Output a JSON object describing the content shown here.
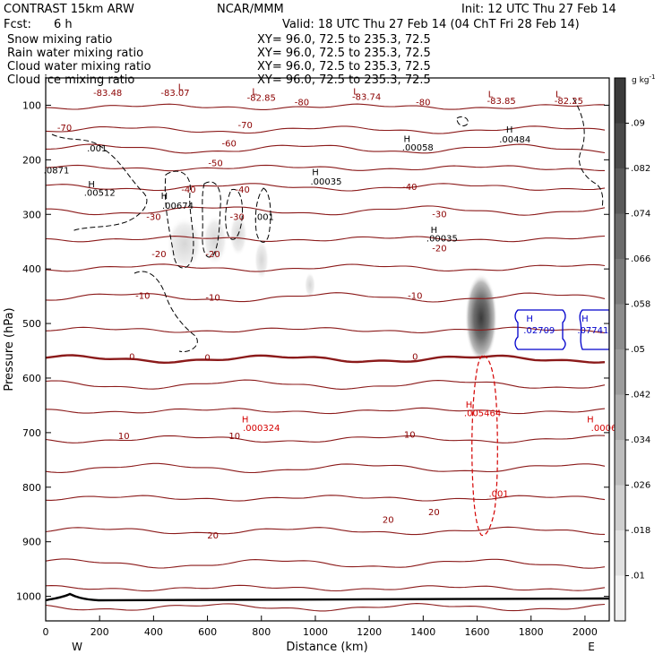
{
  "header": {
    "model": "CONTRAST 15km ARW",
    "org": "NCAR/MMM",
    "init": "Init: 12 UTC Thu 27 Feb 14",
    "fcst_label": "Fcst:",
    "fcst_value": "6 h",
    "valid": "Valid: 18 UTC Thu 27 Feb 14 (04 ChT Fri 28 Feb 14)",
    "legend": [
      {
        "label": "Snow mixing ratio",
        "xy": "XY=  96.0, 72.5 to 235.3, 72.5",
        "color": "#000000"
      },
      {
        "label": "Rain water mixing ratio",
        "xy": "XY=  96.0, 72.5 to 235.3, 72.5",
        "color": "#d40000"
      },
      {
        "label": "Cloud water mixing ratio",
        "xy": "XY=  96.0, 72.5 to 235.3, 72.5",
        "color": "#0000cc"
      },
      {
        "label": "Cloud ice mixing ratio",
        "xy": "XY=  96.0, 72.5 to 235.3, 72.5",
        "color": "#000000"
      }
    ]
  },
  "chart_data": {
    "type": "cross-section",
    "xlabel": "Distance (km)",
    "ylabel": "Pressure (hPa)",
    "xlim": [
      0,
      2090
    ],
    "ylim_hpa": [
      50,
      1045
    ],
    "x_ticks": [
      0,
      200,
      400,
      600,
      800,
      1000,
      1200,
      1400,
      1600,
      1800,
      2000
    ],
    "y_ticks": [
      100,
      200,
      300,
      400,
      500,
      600,
      700,
      800,
      900,
      1000
    ],
    "west_label": "W",
    "east_label": "E",
    "colorbar": {
      "units": "g kg",
      "units_exp": "-1",
      "levels": [
        ".09",
        ".082",
        ".074",
        ".066",
        ".058",
        ".05",
        ".042",
        ".034",
        ".026",
        ".018",
        ".01"
      ],
      "shades": [
        "#3b3b3b",
        "#4a4a4a",
        "#5a5a5a",
        "#6b6b6b",
        "#7b7b7b",
        "#8c8c8c",
        "#9c9c9c",
        "#adadad",
        "#bdbdbd",
        "#cfcfcf",
        "#e1e1e1",
        "#f1f1f1"
      ]
    },
    "temperature_lines": [
      {
        "label": "-80",
        "p": 103
      },
      {
        "label": "-70",
        "p": 145
      },
      {
        "label": "-60",
        "p": 180
      },
      {
        "label": "-50",
        "p": 215
      },
      {
        "label": "-40",
        "p": 250
      },
      {
        "label": "-30",
        "p": 293
      },
      {
        "label": "-20",
        "p": 345
      },
      {
        "label": "-10",
        "p": 398
      },
      {
        "label": "-10",
        "p": 452
      },
      {
        "label": "",
        "p": 512
      },
      {
        "label": "0",
        "p": 565
      },
      {
        "label": "",
        "p": 612
      },
      {
        "label": "",
        "p": 660
      },
      {
        "label": "10",
        "p": 712
      },
      {
        "label": "",
        "p": 765
      },
      {
        "label": "",
        "p": 820
      },
      {
        "label": "20",
        "p": 880
      },
      {
        "label": "",
        "p": 940
      },
      {
        "label": "",
        "p": 985
      },
      {
        "label": "",
        "p": 1020
      }
    ],
    "contour_labels": [
      {
        "text": "-83.48",
        "x": 230,
        "p": 83,
        "color": "#8b0000"
      },
      {
        "text": "L",
        "x": 500,
        "p": 72,
        "color": "#8b0000"
      },
      {
        "text": "-83.07",
        "x": 480,
        "p": 83,
        "color": "#8b0000"
      },
      {
        "text": "L",
        "x": 775,
        "p": 80,
        "color": "#8b0000"
      },
      {
        "text": "-82.85",
        "x": 800,
        "p": 92,
        "color": "#8b0000"
      },
      {
        "text": "-80",
        "x": 950,
        "p": 100,
        "color": "#8b0000"
      },
      {
        "text": "L",
        "x": 1150,
        "p": 80,
        "color": "#8b0000"
      },
      {
        "text": "-83.74",
        "x": 1190,
        "p": 90,
        "color": "#8b0000"
      },
      {
        "text": "-80",
        "x": 1400,
        "p": 100,
        "color": "#8b0000"
      },
      {
        "text": "L",
        "x": 1650,
        "p": 85,
        "color": "#8b0000"
      },
      {
        "text": "-83.85",
        "x": 1690,
        "p": 98,
        "color": "#8b0000"
      },
      {
        "text": "L",
        "x": 1900,
        "p": 85,
        "color": "#8b0000"
      },
      {
        "text": "-82.25",
        "x": 1940,
        "p": 98,
        "color": "#8b0000"
      },
      {
        "text": "-70",
        "x": 70,
        "p": 147,
        "color": "#8b0000"
      },
      {
        "text": "-70",
        "x": 740,
        "p": 142,
        "color": "#8b0000"
      },
      {
        "text": "H",
        "x": 1720,
        "p": 150,
        "color": "#000000"
      },
      {
        "text": ".00484",
        "x": 1740,
        "p": 168,
        "color": "#000000"
      },
      {
        "text": "H",
        "x": 1340,
        "p": 167,
        "color": "#000000"
      },
      {
        "text": ".00058",
        "x": 1380,
        "p": 183,
        "color": "#000000"
      },
      {
        "text": ".001",
        "x": 190,
        "p": 185,
        "color": "#000000"
      },
      {
        "text": "-60",
        "x": 680,
        "p": 176,
        "color": "#8b0000"
      },
      {
        "text": "-50",
        "x": 630,
        "p": 212,
        "color": "#8b0000"
      },
      {
        "text": ".0871",
        "x": 40,
        "p": 225,
        "color": "#000000"
      },
      {
        "text": "H",
        "x": 1000,
        "p": 228,
        "color": "#000000"
      },
      {
        "text": ".00035",
        "x": 1040,
        "p": 245,
        "color": "#000000"
      },
      {
        "text": "H",
        "x": 170,
        "p": 250,
        "color": "#000000"
      },
      {
        "text": ".00512",
        "x": 200,
        "p": 266,
        "color": "#000000"
      },
      {
        "text": "-40",
        "x": 530,
        "p": 260,
        "color": "#8b0000"
      },
      {
        "text": "-40",
        "x": 730,
        "p": 260,
        "color": "#8b0000"
      },
      {
        "text": "-40",
        "x": 1350,
        "p": 255,
        "color": "#8b0000"
      },
      {
        "text": "H",
        "x": 440,
        "p": 272,
        "color": "#000000"
      },
      {
        "text": ".00674",
        "x": 490,
        "p": 290,
        "color": "#000000"
      },
      {
        "text": "-30",
        "x": 400,
        "p": 310,
        "color": "#8b0000"
      },
      {
        "text": "-30",
        "x": 710,
        "p": 310,
        "color": "#8b0000"
      },
      {
        "text": ".001",
        "x": 810,
        "p": 310,
        "color": "#000000"
      },
      {
        "text": "-30",
        "x": 1460,
        "p": 305,
        "color": "#8b0000"
      },
      {
        "text": "H",
        "x": 1440,
        "p": 334,
        "color": "#000000"
      },
      {
        "text": ".00035",
        "x": 1470,
        "p": 350,
        "color": "#000000"
      },
      {
        "text": "-20",
        "x": 1460,
        "p": 368,
        "color": "#8b0000"
      },
      {
        "text": "-20",
        "x": 420,
        "p": 378,
        "color": "#8b0000"
      },
      {
        "text": "-20",
        "x": 620,
        "p": 378,
        "color": "#8b0000"
      },
      {
        "text": "-10",
        "x": 360,
        "p": 455,
        "color": "#8b0000"
      },
      {
        "text": "-10",
        "x": 620,
        "p": 458,
        "color": "#8b0000"
      },
      {
        "text": "-10",
        "x": 1370,
        "p": 455,
        "color": "#8b0000"
      },
      {
        "text": "H",
        "x": 1795,
        "p": 497,
        "color": "#0000cc"
      },
      {
        "text": ".02709",
        "x": 1830,
        "p": 518,
        "color": "#0000cc"
      },
      {
        "text": "H",
        "x": 2000,
        "p": 497,
        "color": "#0000cc"
      },
      {
        "text": ".07741",
        "x": 2030,
        "p": 518,
        "color": "#0000cc"
      },
      {
        "text": "0",
        "x": 320,
        "p": 566,
        "color": "#8b0000"
      },
      {
        "text": "0",
        "x": 600,
        "p": 568,
        "color": "#8b0000"
      },
      {
        "text": "0",
        "x": 1370,
        "p": 566,
        "color": "#8b0000"
      },
      {
        "text": "H",
        "x": 1570,
        "p": 654,
        "color": "#d40000"
      },
      {
        "text": ".005464",
        "x": 1620,
        "p": 670,
        "color": "#d40000"
      },
      {
        "text": "H",
        "x": 740,
        "p": 681,
        "color": "#d40000"
      },
      {
        "text": ".000324",
        "x": 800,
        "p": 697,
        "color": "#d40000"
      },
      {
        "text": "H",
        "x": 2020,
        "p": 681,
        "color": "#d40000"
      },
      {
        "text": ".0006",
        "x": 2070,
        "p": 697,
        "color": "#d40000"
      },
      {
        "text": "10",
        "x": 290,
        "p": 712,
        "color": "#8b0000"
      },
      {
        "text": "10",
        "x": 700,
        "p": 712,
        "color": "#8b0000"
      },
      {
        "text": "10",
        "x": 1350,
        "p": 709,
        "color": "#8b0000"
      },
      {
        "text": ".001",
        "x": 1680,
        "p": 818,
        "color": "#d40000"
      },
      {
        "text": "20",
        "x": 1270,
        "p": 865,
        "color": "#8b0000"
      },
      {
        "text": "20",
        "x": 1440,
        "p": 851,
        "color": "#8b0000"
      },
      {
        "text": "20",
        "x": 620,
        "p": 894,
        "color": "#8b0000"
      }
    ]
  }
}
